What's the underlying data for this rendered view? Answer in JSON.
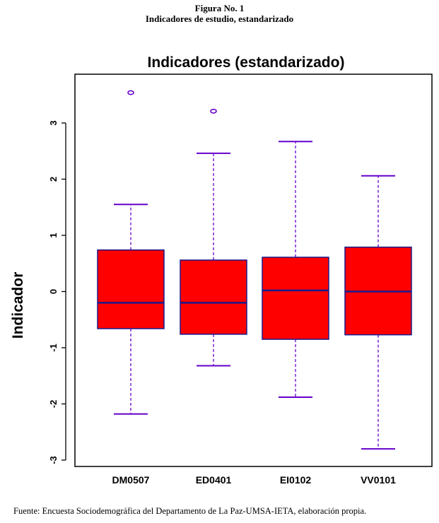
{
  "figure": {
    "label": "Figura No. 1",
    "subtitle": "Indicadores de estudio, estandarizado",
    "source": "Fuente: Encuesta Sociodemográfica del Departamento de La Paz-UMSA-IETA, elaboración propia."
  },
  "chart_data": {
    "type": "boxplot",
    "title": "Indicadores (estandarizado)",
    "xlabel": "",
    "ylabel": "Indicador",
    "ylim": [
      -3.0,
      3.5
    ],
    "yticks": [
      -3,
      -2,
      -1,
      0,
      1,
      2,
      3
    ],
    "ytick_labels": [
      "-3",
      "-2",
      "-1",
      "0",
      "1",
      "2",
      "3"
    ],
    "grid": false,
    "legend": "none",
    "colors": {
      "box_fill": "#ff0000",
      "box_border": "#1a1a8c",
      "whisker": "#6600cc",
      "outlier": "#6600cc"
    },
    "categories": [
      "DM0507",
      "ED0401",
      "EI0102",
      "VV0101"
    ],
    "boxes": [
      {
        "name": "DM0507",
        "whisker_low": -2.18,
        "q1": -0.66,
        "median": -0.2,
        "q3": 0.74,
        "whisker_high": 1.55,
        "outliers": [
          3.54
        ]
      },
      {
        "name": "ED0401",
        "whisker_low": -1.32,
        "q1": -0.76,
        "median": -0.2,
        "q3": 0.56,
        "whisker_high": 2.46,
        "outliers": [
          3.21
        ]
      },
      {
        "name": "EI0102",
        "whisker_low": -1.88,
        "q1": -0.85,
        "median": 0.02,
        "q3": 0.61,
        "whisker_high": 2.67,
        "outliers": []
      },
      {
        "name": "VV0101",
        "whisker_low": -2.8,
        "q1": -0.77,
        "median": 0.0,
        "q3": 0.79,
        "whisker_high": 2.06,
        "outliers": []
      }
    ]
  }
}
